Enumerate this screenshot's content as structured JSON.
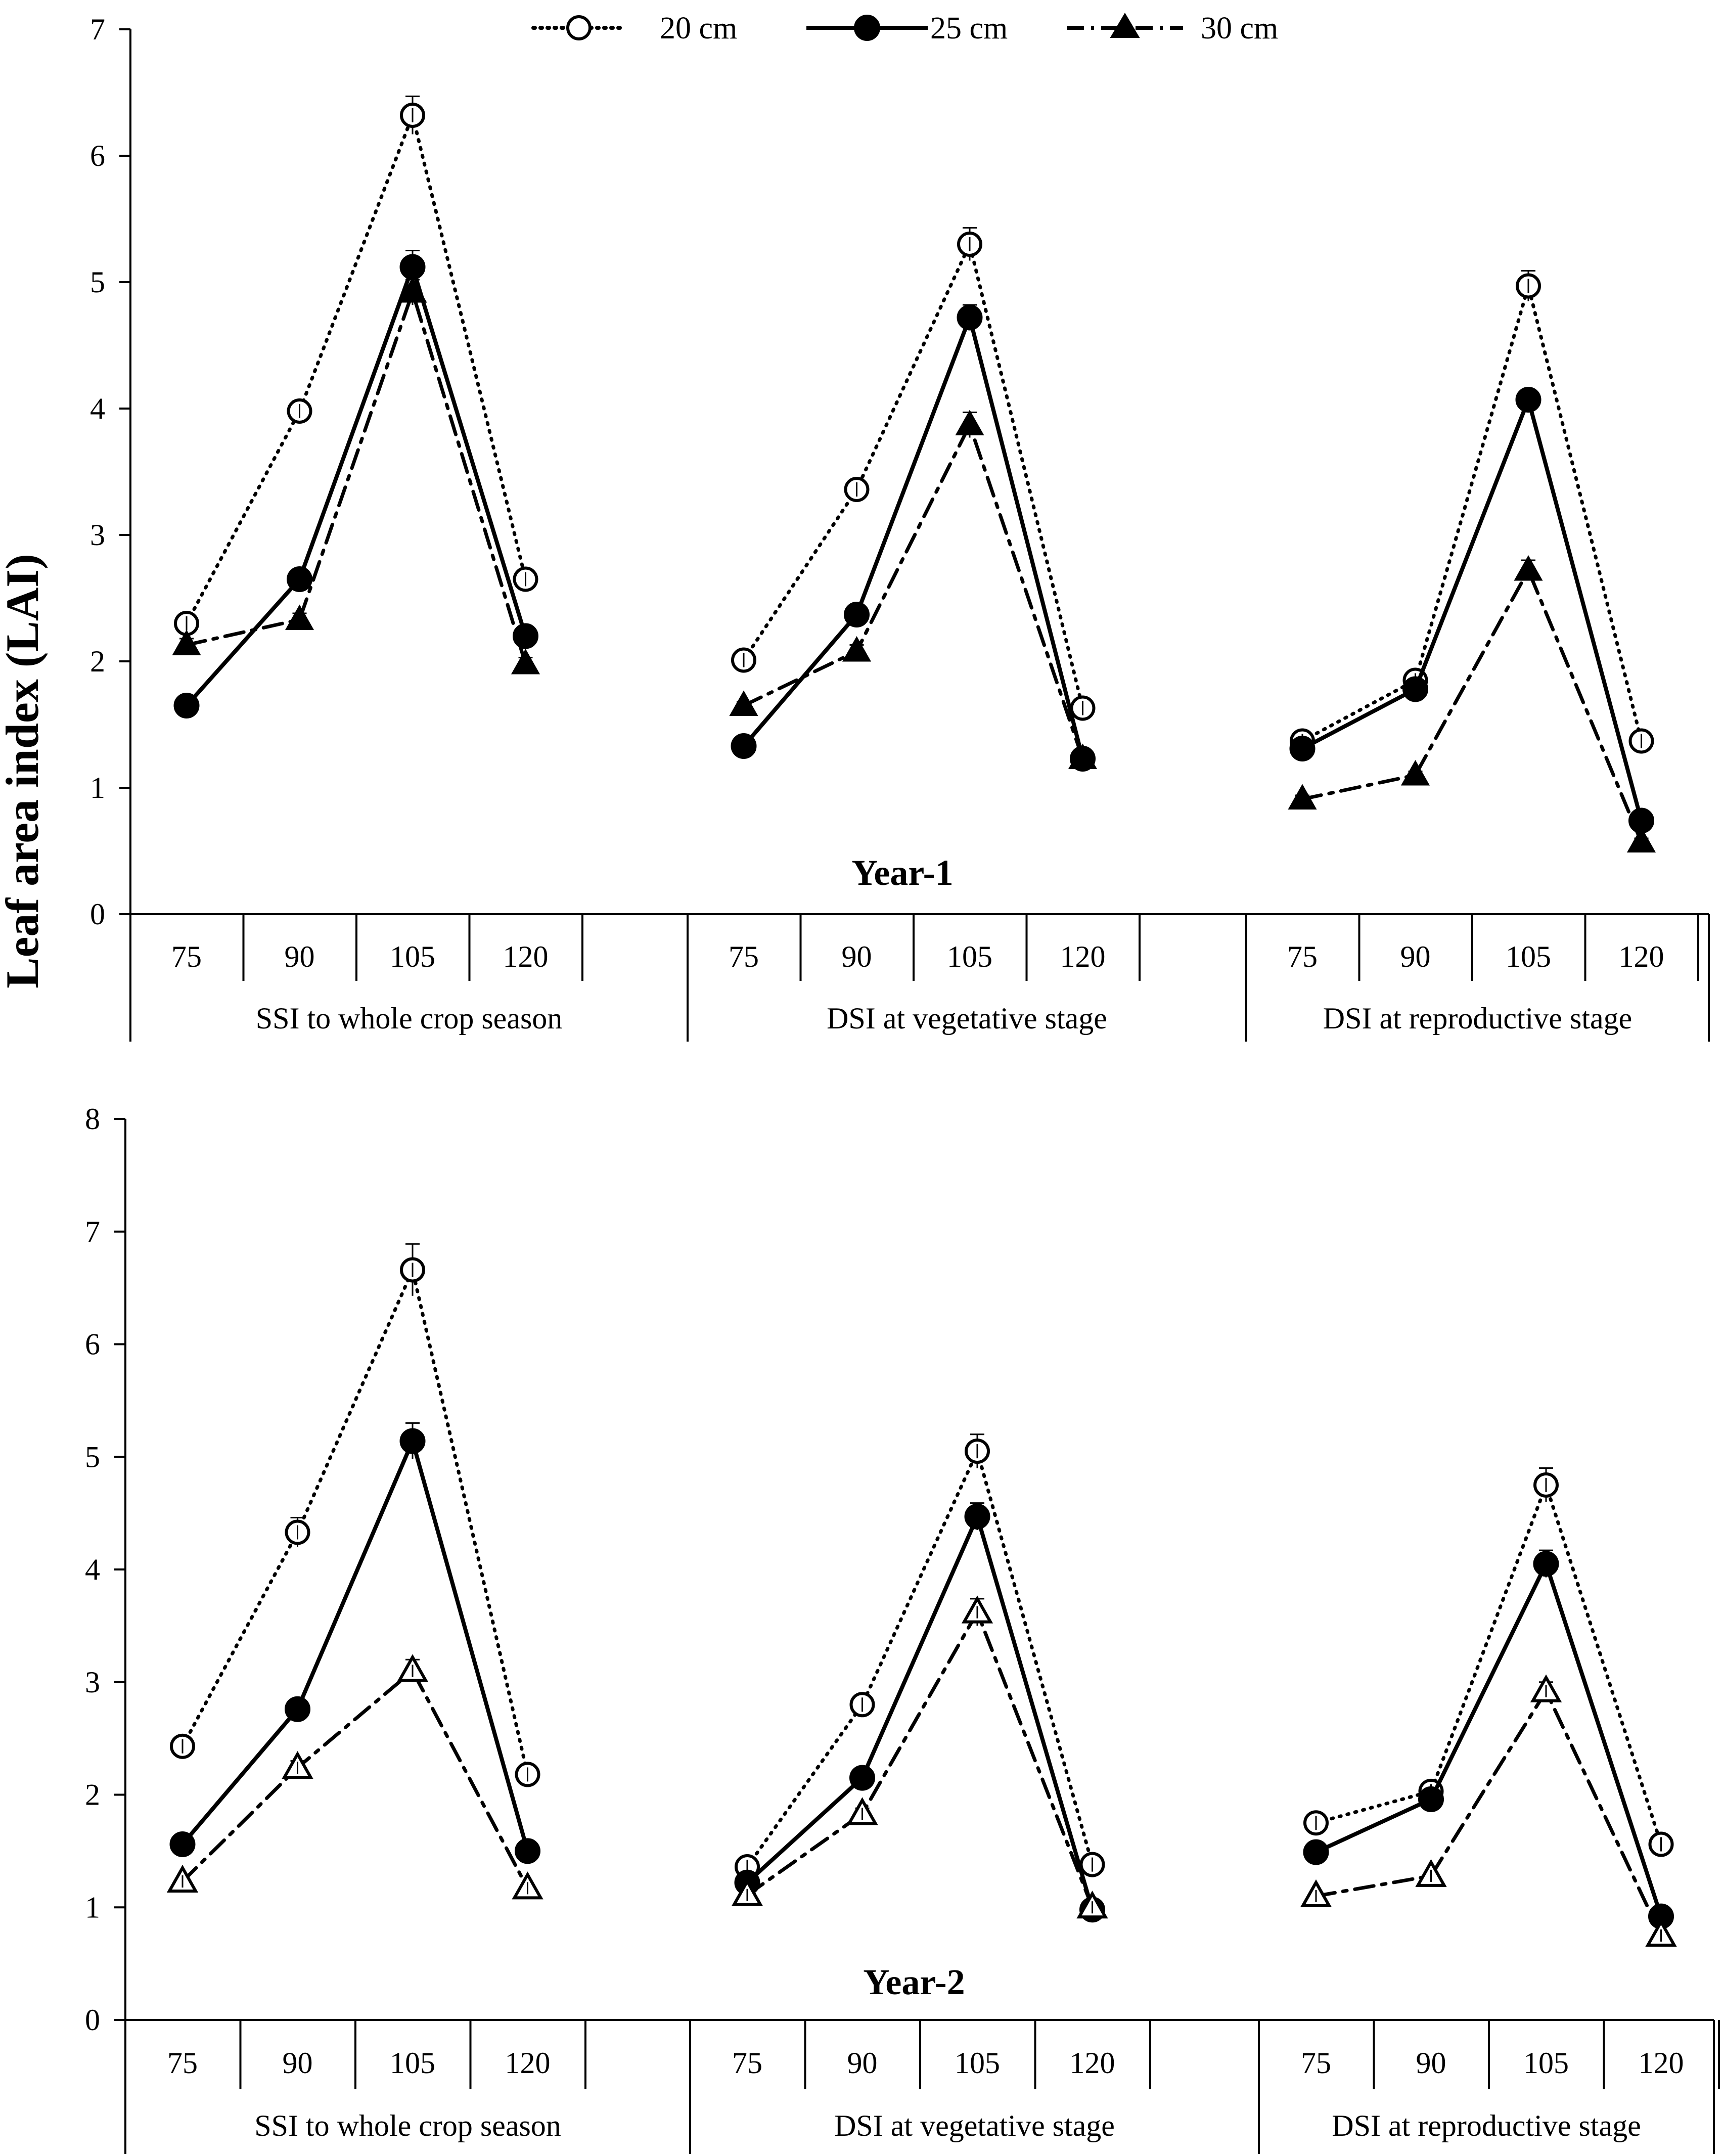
{
  "y_axis_label": "Leaf area index (LAI)",
  "legend": [
    {
      "name": "20 cm",
      "marker": "open-circle",
      "dash": "dotted"
    },
    {
      "name": "25 cm",
      "marker": "filled-circle",
      "dash": "solid"
    },
    {
      "name": "30 cm",
      "marker": "filled-triangle",
      "dash": "dash-dot"
    }
  ],
  "chart_data": [
    {
      "type": "line",
      "title": "Year-1",
      "ylabel": "Leaf area index (LAI)",
      "ylim": [
        0,
        7
      ],
      "yticks": [
        "0",
        "1",
        "2",
        "3",
        "4",
        "5",
        "6",
        "7"
      ],
      "groups": [
        "SSI to whole crop season",
        "DSI at vegetative stage",
        "DSI at reproductive stage"
      ],
      "x": [
        "75",
        "90",
        "105",
        "120"
      ],
      "triangle_fill": "filled",
      "series": [
        {
          "name": "20 cm",
          "values": [
            [
              2.3,
              3.98,
              6.32,
              2.65
            ],
            [
              2.01,
              3.36,
              5.3,
              1.63
            ],
            [
              1.37,
              1.85,
              4.97,
              1.37
            ]
          ],
          "errors": [
            [
              0.05,
              0.08,
              0.15,
              0.05
            ],
            [
              0.05,
              0.06,
              0.13,
              0.05
            ],
            [
              0.03,
              0.05,
              0.12,
              0.05
            ]
          ]
        },
        {
          "name": "25 cm",
          "values": [
            [
              1.65,
              2.65,
              5.12,
              2.2
            ],
            [
              1.33,
              2.37,
              4.72,
              1.23
            ],
            [
              1.31,
              1.78,
              4.07,
              0.74
            ]
          ],
          "errors": [
            [
              0.03,
              0.06,
              0.13,
              0.05
            ],
            [
              0.03,
              0.05,
              0.1,
              0.03
            ],
            [
              0.03,
              0.04,
              0.08,
              0.03
            ]
          ]
        },
        {
          "name": "30 cm",
          "values": [
            [
              2.13,
              2.33,
              4.92,
              1.98
            ],
            [
              1.65,
              2.08,
              3.87,
              1.23
            ],
            [
              0.91,
              1.1,
              2.72,
              0.57
            ]
          ],
          "errors": [
            [
              0.05,
              0.05,
              0.1,
              0.05
            ],
            [
              0.03,
              0.05,
              0.1,
              0.03
            ],
            [
              0.03,
              0.03,
              0.08,
              0.03
            ]
          ]
        }
      ]
    },
    {
      "type": "line",
      "title": "Year-2",
      "ylabel": "Leaf area index (LAI)",
      "ylim": [
        0,
        8
      ],
      "yticks": [
        "0",
        "1",
        "2",
        "3",
        "4",
        "5",
        "6",
        "7",
        "8"
      ],
      "groups": [
        "SSI to whole crop season",
        "DSI at vegetative stage",
        "DSI at reproductive stage"
      ],
      "x": [
        "75",
        "90",
        "105",
        "120"
      ],
      "triangle_fill": "open",
      "series": [
        {
          "name": "20 cm",
          "values": [
            [
              2.43,
              4.33,
              6.66,
              2.18
            ],
            [
              1.36,
              2.8,
              5.05,
              1.38
            ],
            [
              1.75,
              2.03,
              4.75,
              1.56
            ]
          ],
          "errors": [
            [
              0.05,
              0.13,
              0.23,
              0.05
            ],
            [
              0.05,
              0.08,
              0.15,
              0.05
            ],
            [
              0.06,
              0.06,
              0.15,
              0.05
            ]
          ]
        },
        {
          "name": "25 cm",
          "values": [
            [
              1.56,
              2.76,
              5.14,
              1.5
            ],
            [
              1.22,
              2.15,
              4.47,
              0.98
            ],
            [
              1.49,
              1.96,
              4.05,
              0.92
            ]
          ],
          "errors": [
            [
              0.03,
              0.05,
              0.16,
              0.03
            ],
            [
              0.03,
              0.05,
              0.12,
              0.03
            ],
            [
              0.03,
              0.05,
              0.12,
              0.03
            ]
          ]
        },
        {
          "name": "30 cm",
          "values": [
            [
              1.23,
              2.24,
              3.1,
              1.17
            ],
            [
              1.11,
              1.83,
              3.62,
              1.0
            ],
            [
              1.1,
              1.28,
              2.92,
              0.75
            ]
          ],
          "errors": [
            [
              0.03,
              0.06,
              0.1,
              0.03
            ],
            [
              0.03,
              0.05,
              0.12,
              0.03
            ],
            [
              0.03,
              0.03,
              0.08,
              0.03
            ]
          ]
        }
      ]
    }
  ]
}
